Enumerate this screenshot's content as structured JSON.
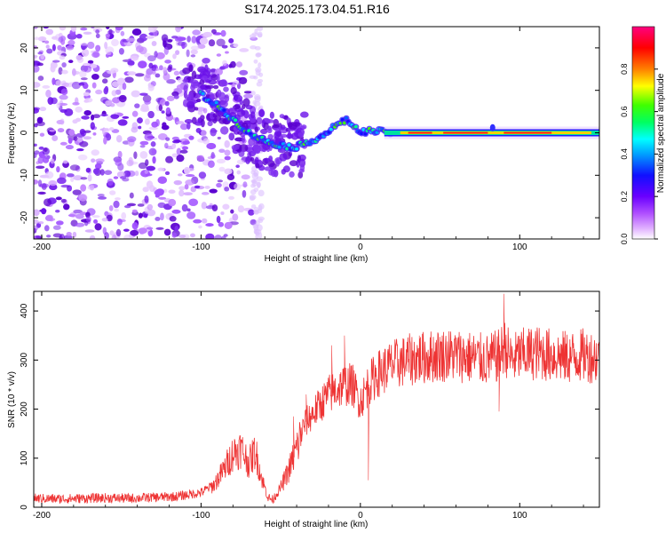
{
  "page": {
    "title": "S174.2025.173.04.51.R16"
  },
  "chart_data": [
    {
      "type": "heatmap",
      "title": "S174.2025.173.04.51.R16",
      "xlabel": "Height of straight line (km)",
      "ylabel": "Frequency (Hz)",
      "xlim": [
        -205,
        150
      ],
      "ylim": [
        -25,
        25
      ],
      "x_ticks": [
        -200,
        -100,
        0,
        100
      ],
      "y_ticks": [
        -20,
        -10,
        0,
        10,
        20
      ],
      "colorbar": {
        "label": "Normalized spectral amplitude",
        "range": [
          0.0,
          1.0
        ],
        "ticks": [
          0.0,
          0.2,
          0.4,
          0.6,
          0.8
        ],
        "colors": [
          "#ffffff",
          "#e0b0ff",
          "#b050ff",
          "#6a00ff",
          "#1010ff",
          "#00a0ff",
          "#00ffff",
          "#00ff60",
          "#40ff00",
          "#ffff00",
          "#ff8000",
          "#ff0000",
          "#ff0080"
        ]
      },
      "ridge": {
        "x": [
          -100,
          -92,
          -85,
          -78,
          -70,
          -62,
          -55,
          -48,
          -42,
          -38,
          -32,
          -25,
          -18,
          -12,
          -8,
          -4,
          0,
          5,
          12,
          20,
          50,
          82,
          85,
          100,
          130,
          150
        ],
        "y": [
          9,
          7,
          5,
          2.5,
          0,
          -1.5,
          -2.5,
          -3,
          -3.5,
          -3,
          -2,
          -1,
          1,
          2.5,
          3,
          1.5,
          0,
          0.5,
          0.3,
          0,
          0,
          0,
          1.2,
          0,
          0,
          0
        ]
      }
    },
    {
      "type": "line",
      "xlabel": "Height of straight line (km)",
      "ylabel": "SNR (10 * v/v)",
      "xlim": [
        -205,
        150
      ],
      "ylim": [
        0,
        440
      ],
      "x_ticks": [
        -200,
        -100,
        0,
        100
      ],
      "y_ticks": [
        0,
        100,
        200,
        300,
        400
      ],
      "line_color": "#ee3333",
      "series": [
        {
          "x": [
            -205,
            -190,
            -175,
            -160,
            -145,
            -130,
            -115,
            -100,
            -92,
            -85,
            -80,
            -75,
            -70,
            -66,
            -62,
            -58,
            -55,
            -50,
            -45,
            -40,
            -35,
            -30,
            -25,
            -20,
            -15,
            -10,
            -5,
            0,
            5,
            10,
            15,
            20,
            30,
            40,
            50,
            60,
            70,
            80,
            88,
            90,
            95,
            100,
            110,
            120,
            130,
            140,
            150
          ],
          "y": [
            18,
            17,
            18,
            19,
            18,
            20,
            22,
            30,
            45,
            80,
            110,
            120,
            90,
            115,
            60,
            20,
            15,
            40,
            75,
            120,
            170,
            190,
            210,
            230,
            240,
            250,
            250,
            215,
            250,
            270,
            280,
            290,
            300,
            305,
            310,
            310,
            305,
            300,
            310,
            330,
            300,
            310,
            315,
            310,
            305,
            310,
            305
          ],
          "spikes": [
            {
              "x": -10,
              "y": 350
            },
            {
              "x": -18,
              "y": 330
            },
            {
              "x": -42,
              "y": 185
            },
            {
              "x": -34,
              "y": 230
            },
            {
              "x": 5,
              "y": 55
            },
            {
              "x": 90,
              "y": 435
            },
            {
              "x": 87,
              "y": 195
            },
            {
              "x": 37,
              "y": 350
            }
          ]
        }
      ]
    }
  ]
}
